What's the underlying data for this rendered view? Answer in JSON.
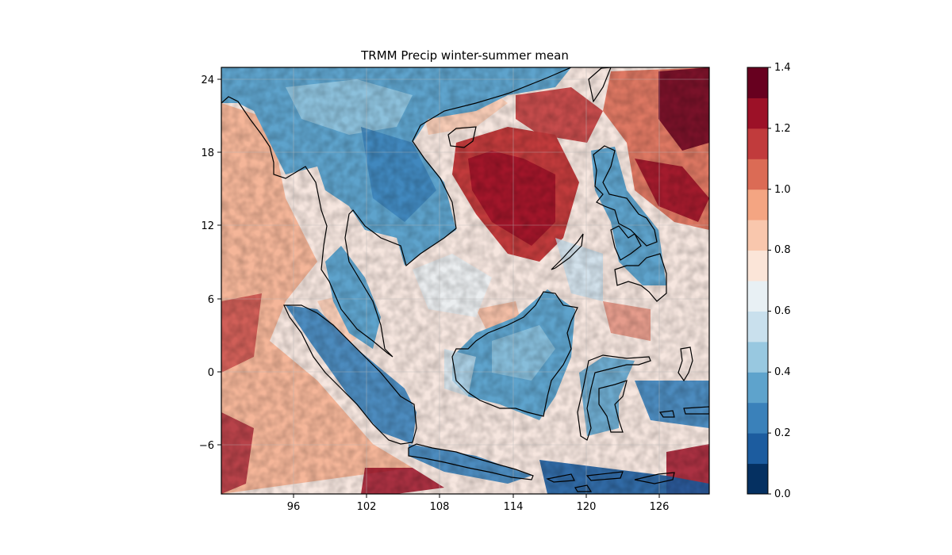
{
  "title": "TRMM Precip winter-summer mean",
  "map": {
    "lon_range": [
      90,
      130
    ],
    "lat_range": [
      -10,
      25
    ],
    "lon_ticks": [
      "96",
      "102",
      "108",
      "114",
      "120",
      "126"
    ],
    "lat_ticks": [
      "24",
      "18",
      "12",
      "6",
      "0",
      "−6"
    ],
    "gridlines": true,
    "coastline_color": "#000000"
  },
  "colorbar": {
    "min": 0.0,
    "max": 1.4,
    "tick_labels": [
      "0.0",
      "0.2",
      "0.4",
      "0.6",
      "0.8",
      "1.0",
      "1.2",
      "1.4"
    ],
    "colors": [
      "#053061",
      "#1c5c9f",
      "#3a81ba",
      "#5ea3cc",
      "#98c8e0",
      "#c9e0ed",
      "#e8f0f4",
      "#fbe5d8",
      "#f9c7ad",
      "#f4a582",
      "#db6b55",
      "#c13b3c",
      "#9c1127",
      "#67001f"
    ]
  }
}
